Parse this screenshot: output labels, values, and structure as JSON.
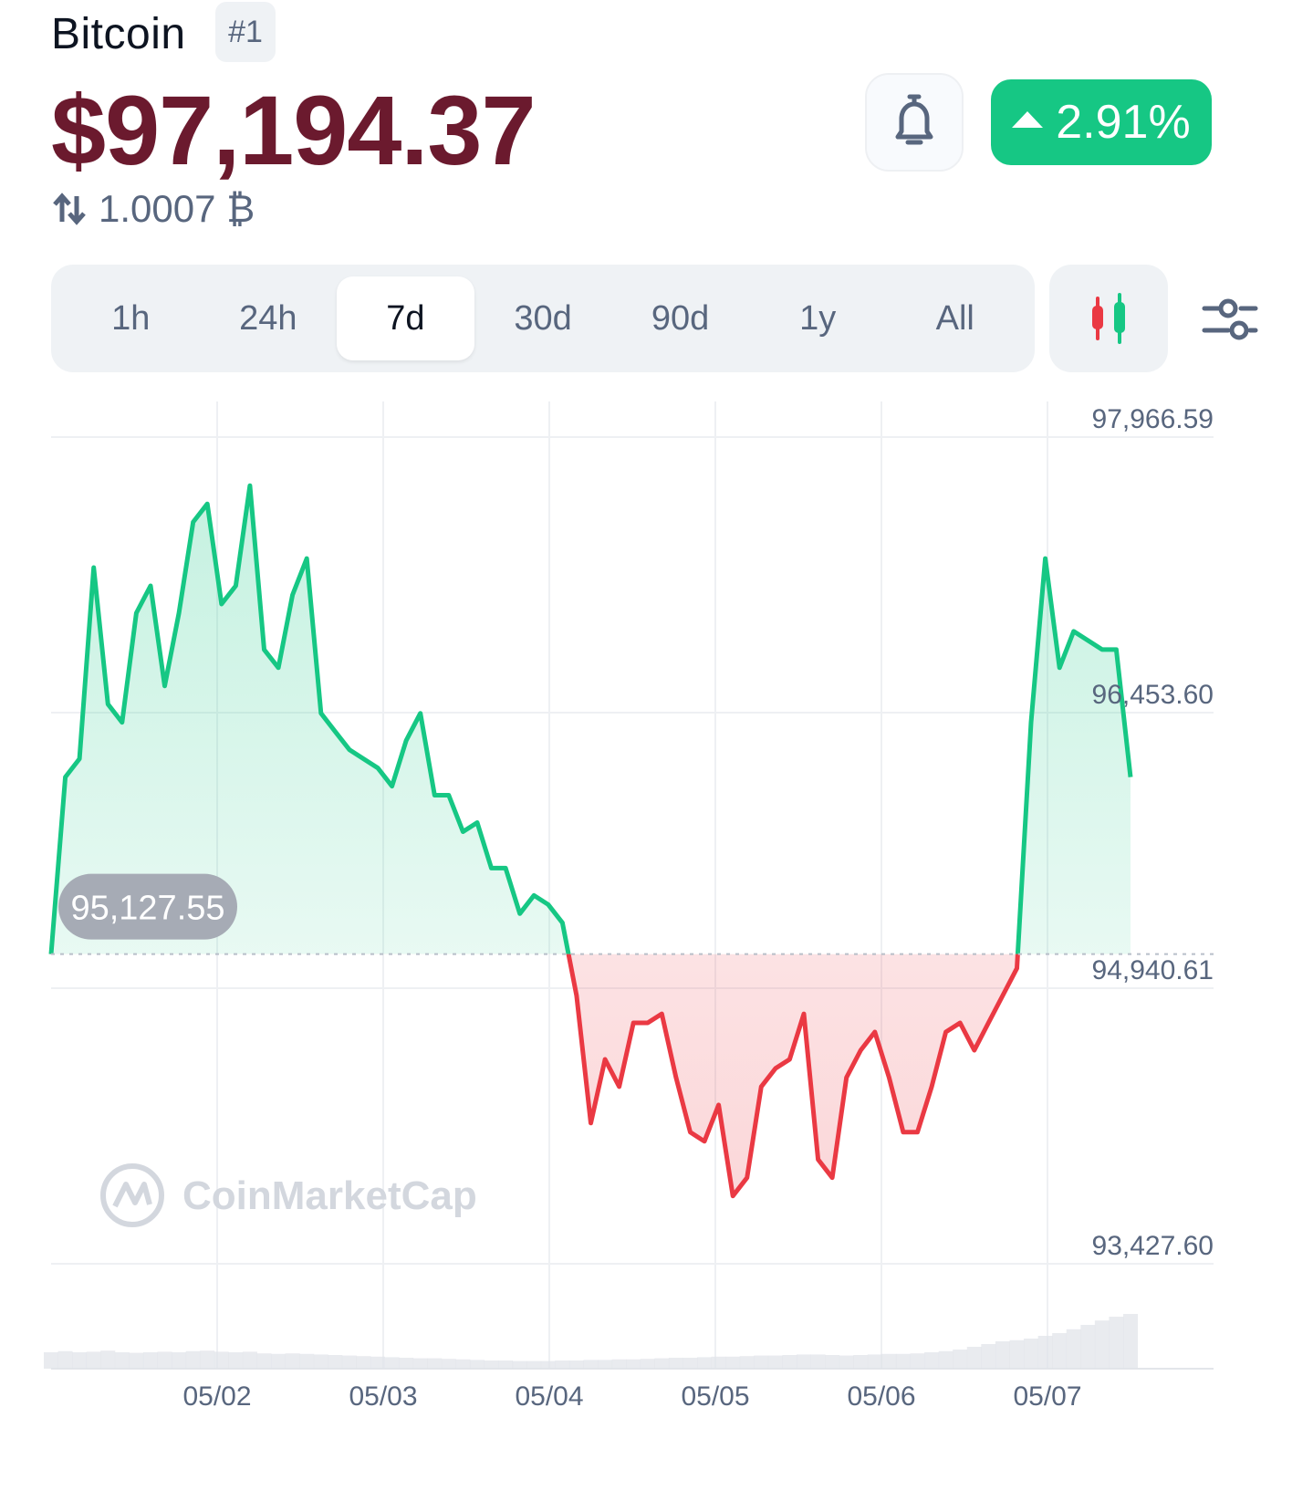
{
  "coin": {
    "name": "Bitcoin",
    "rank": "#1",
    "price": "$97,194.37",
    "btc_value": "1.0007 ₿",
    "change_percent": "2.91%",
    "change_direction": "up",
    "up_color": "#16c784",
    "down_color": "#ea3943"
  },
  "time_ranges": [
    {
      "label": "1h",
      "active": false
    },
    {
      "label": "24h",
      "active": false
    },
    {
      "label": "7d",
      "active": true
    },
    {
      "label": "30d",
      "active": false
    },
    {
      "label": "90d",
      "active": false
    },
    {
      "label": "1y",
      "active": false
    },
    {
      "label": "All",
      "active": false
    }
  ],
  "icons": {
    "alert": "bell-icon",
    "conversion": "swap-arrows-icon",
    "chart_type": "candlestick-icon",
    "settings": "sliders-icon",
    "brand": "coinmarketcap-logo"
  },
  "watermark": "CoinMarketCap",
  "chart_data": {
    "type": "area",
    "baseline_value": 95127.55,
    "baseline_label": "95,127.55",
    "y_ticks": [
      {
        "value": 97966.59,
        "label": "97,966.59"
      },
      {
        "value": 96453.6,
        "label": "96,453.60"
      },
      {
        "value": 94940.61,
        "label": "94,940.61"
      },
      {
        "value": 93427.6,
        "label": "93,427.60"
      }
    ],
    "ylim": [
      93427.6,
      97966.59
    ],
    "x_ticks": [
      "05/02",
      "05/03",
      "05/04",
      "05/05",
      "05/06",
      "05/07"
    ],
    "grid": true,
    "x": [
      "05/01 00:00",
      "05/01 02:00",
      "05/01 04:00",
      "05/01 06:00",
      "05/01 08:00",
      "05/01 10:00",
      "05/01 12:00",
      "05/01 14:00",
      "05/01 16:00",
      "05/01 18:00",
      "05/01 20:00",
      "05/01 22:00",
      "05/02 00:00",
      "05/02 02:00",
      "05/02 04:00",
      "05/02 06:00",
      "05/02 08:00",
      "05/02 10:00",
      "05/02 12:00",
      "05/02 14:00",
      "05/02 16:00",
      "05/02 18:00",
      "05/02 20:00",
      "05/02 22:00",
      "05/03 00:00",
      "05/03 02:00",
      "05/03 04:00",
      "05/03 06:00",
      "05/03 08:00",
      "05/03 10:00",
      "05/03 12:00",
      "05/03 14:00",
      "05/03 16:00",
      "05/03 18:00",
      "05/03 20:00",
      "05/03 22:00",
      "05/04 00:00",
      "05/04 02:00",
      "05/04 04:00",
      "05/04 06:00",
      "05/04 08:00",
      "05/04 10:00",
      "05/04 12:00",
      "05/04 14:00",
      "05/04 16:00",
      "05/04 18:00",
      "05/04 20:00",
      "05/04 22:00",
      "05/05 00:00",
      "05/05 02:00",
      "05/05 04:00",
      "05/05 06:00",
      "05/05 08:00",
      "05/05 10:00",
      "05/05 12:00",
      "05/05 14:00",
      "05/05 16:00",
      "05/05 18:00",
      "05/05 20:00",
      "05/05 22:00",
      "05/06 00:00",
      "05/06 02:00",
      "05/06 04:00",
      "05/06 06:00",
      "05/06 08:00",
      "05/06 10:00",
      "05/06 12:00",
      "05/06 14:00",
      "05/06 16:00",
      "05/06 18:00",
      "05/06 20:00",
      "05/06 22:00",
      "05/07 00:00",
      "05/07 02:00",
      "05/07 04:00",
      "05/07 06:00",
      "05/07 08:00"
    ],
    "values": [
      95127.55,
      96100,
      96200,
      97250,
      96500,
      96400,
      97000,
      97150,
      96600,
      97000,
      97500,
      97600,
      97050,
      97150,
      97700,
      96800,
      96700,
      97100,
      97300,
      96450,
      96350,
      96250,
      96200,
      96150,
      96050,
      96300,
      96450,
      96000,
      96000,
      95800,
      95850,
      95600,
      95600,
      95350,
      95450,
      95400,
      95300,
      94900,
      94200,
      94550,
      94400,
      94750,
      94750,
      94800,
      94450,
      94150,
      94100,
      94300,
      93800,
      93900,
      94400,
      94500,
      94550,
      94800,
      94000,
      93900,
      94450,
      94600,
      94700,
      94450,
      94150,
      94150,
      94400,
      94700,
      94750,
      94600,
      94750,
      94900,
      95050,
      96400,
      97300,
      96700,
      96900,
      96850,
      96800,
      96800,
      96100
    ]
  },
  "volume_data": [
    0.3,
    0.32,
    0.3,
    0.31,
    0.33,
    0.3,
    0.29,
    0.3,
    0.31,
    0.3,
    0.32,
    0.33,
    0.31,
    0.3,
    0.31,
    0.28,
    0.27,
    0.28,
    0.27,
    0.26,
    0.25,
    0.24,
    0.23,
    0.22,
    0.21,
    0.2,
    0.19,
    0.19,
    0.18,
    0.17,
    0.16,
    0.15,
    0.15,
    0.14,
    0.14,
    0.14,
    0.15,
    0.15,
    0.16,
    0.16,
    0.17,
    0.17,
    0.18,
    0.19,
    0.2,
    0.2,
    0.21,
    0.22,
    0.22,
    0.23,
    0.24,
    0.24,
    0.25,
    0.26,
    0.26,
    0.25,
    0.24,
    0.25,
    0.26,
    0.27,
    0.27,
    0.28,
    0.3,
    0.32,
    0.35,
    0.4,
    0.45,
    0.5,
    0.52,
    0.55,
    0.6,
    0.65,
    0.72,
    0.8,
    0.88,
    0.95,
    1.0
  ]
}
